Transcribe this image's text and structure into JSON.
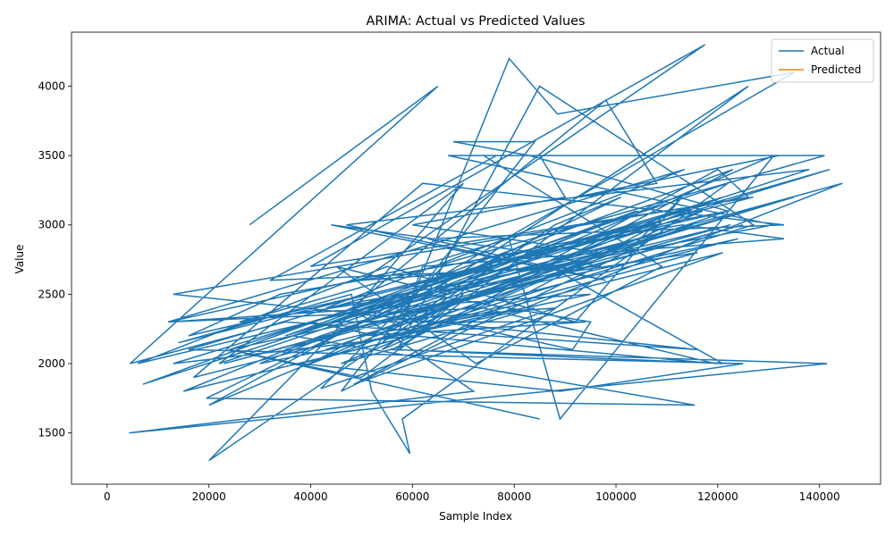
{
  "chart_data": {
    "type": "line",
    "title": "ARIMA: Actual vs Predicted Values",
    "xlabel": "Sample Index",
    "ylabel": "Value",
    "xlim": [
      -7000,
      152000
    ],
    "ylim": [
      1130,
      4390
    ],
    "x_ticks": [
      0,
      20000,
      40000,
      60000,
      80000,
      100000,
      120000,
      140000
    ],
    "x_tick_labels": [
      "0",
      "20000",
      "40000",
      "60000",
      "80000",
      "100000",
      "120000",
      "140000"
    ],
    "y_ticks": [
      1500,
      2000,
      2500,
      3000,
      3500,
      4000
    ],
    "y_tick_labels": [
      "1500",
      "2000",
      "2500",
      "3000",
      "3500",
      "4000"
    ],
    "grid": false,
    "legend_position": "top-right",
    "series": [
      {
        "name": "Actual",
        "color": "#1f77b4",
        "points": [
          [
            28000,
            3000
          ],
          [
            65000,
            4000
          ],
          [
            4500,
            2000
          ],
          [
            35000,
            2300
          ],
          [
            116000,
            2100
          ],
          [
            13000,
            2500
          ],
          [
            126000,
            3200
          ],
          [
            120000,
            3400
          ],
          [
            85000,
            2700
          ],
          [
            47000,
            3000
          ],
          [
            138000,
            3400
          ],
          [
            7000,
            1850
          ],
          [
            123000,
            3400
          ],
          [
            56000,
            2100
          ],
          [
            141500,
            2000
          ],
          [
            4300,
            1500
          ],
          [
            72000,
            1800
          ],
          [
            48000,
            2400
          ],
          [
            98000,
            3900
          ],
          [
            108000,
            3300
          ],
          [
            92000,
            3200
          ],
          [
            132000,
            3500
          ],
          [
            67000,
            3500
          ],
          [
            131000,
            3000
          ],
          [
            43000,
            2400
          ],
          [
            113500,
            3400
          ],
          [
            12000,
            2300
          ],
          [
            74000,
            2400
          ],
          [
            119500,
            2000
          ],
          [
            60000,
            2200
          ],
          [
            13000,
            2000
          ],
          [
            112000,
            3100
          ],
          [
            20000,
            1700
          ],
          [
            50000,
            2300
          ],
          [
            135000,
            4100
          ],
          [
            88500,
            3800
          ],
          [
            79000,
            4200
          ],
          [
            57000,
            2200
          ],
          [
            62000,
            2700
          ],
          [
            133000,
            2900
          ],
          [
            113000,
            3000
          ],
          [
            34000,
            2500
          ],
          [
            16000,
            2200
          ],
          [
            122000,
            3100
          ],
          [
            83000,
            3500
          ],
          [
            68000,
            3600
          ],
          [
            84000,
            3600
          ],
          [
            46000,
            1800
          ],
          [
            102000,
            2800
          ],
          [
            113000,
            3200
          ],
          [
            92000,
            2300
          ],
          [
            55000,
            2700
          ],
          [
            6000,
            2000
          ],
          [
            97000,
            2800
          ],
          [
            60000,
            3000
          ],
          [
            90000,
            3200
          ],
          [
            85000,
            3500
          ],
          [
            76500,
            3500
          ],
          [
            32000,
            2600
          ],
          [
            97000,
            2700
          ],
          [
            84000,
            2800
          ],
          [
            44000,
            3000
          ],
          [
            98000,
            2600
          ],
          [
            63000,
            2900
          ],
          [
            133000,
            3000
          ],
          [
            62000,
            3300
          ],
          [
            17000,
            1900
          ],
          [
            124000,
            2900
          ],
          [
            24000,
            2100
          ],
          [
            122000,
            3300
          ],
          [
            58000,
            1600
          ],
          [
            59500,
            1350
          ],
          [
            52000,
            1800
          ],
          [
            48000,
            2500
          ],
          [
            14000,
            2150
          ],
          [
            127000,
            3200
          ],
          [
            40000,
            2700
          ],
          [
            117500,
            4300
          ],
          [
            50000,
            2600
          ],
          [
            87000,
            2700
          ],
          [
            121000,
            2000
          ],
          [
            57000,
            2100
          ],
          [
            63000,
            2500
          ],
          [
            22000,
            2000
          ],
          [
            70000,
            3300
          ],
          [
            44000,
            2200
          ],
          [
            20000,
            1300
          ],
          [
            88000,
            3000
          ],
          [
            101000,
            3200
          ],
          [
            19500,
            1750
          ],
          [
            115500,
            1700
          ],
          [
            36500,
            2200
          ],
          [
            104000,
            3100
          ],
          [
            30000,
            2000
          ],
          [
            84000,
            2400
          ],
          [
            46000,
            2000
          ],
          [
            104000,
            2900
          ],
          [
            43000,
            2100
          ],
          [
            95000,
            2500
          ],
          [
            12000,
            2300
          ],
          [
            61000,
            2700
          ],
          [
            79000,
            2900
          ],
          [
            89000,
            1600
          ],
          [
            131000,
            3500
          ],
          [
            67000,
            2500
          ],
          [
            45000,
            2700
          ],
          [
            72500,
            2000
          ],
          [
            109000,
            2700
          ],
          [
            74000,
            3500
          ],
          [
            141000,
            3500
          ],
          [
            26000,
            2300
          ],
          [
            116000,
            2800
          ],
          [
            56000,
            2200
          ],
          [
            127000,
            3000
          ],
          [
            85000,
            4000
          ],
          [
            60000,
            2300
          ],
          [
            93000,
            2800
          ],
          [
            121000,
            3200
          ],
          [
            66000,
            2600
          ],
          [
            142000,
            3400
          ],
          [
            35000,
            2200
          ],
          [
            104500,
            3100
          ],
          [
            55000,
            2400
          ],
          [
            144500,
            3300
          ],
          [
            82000,
            2400
          ],
          [
            50000,
            2200
          ],
          [
            94000,
            2300
          ],
          [
            44000,
            2300
          ],
          [
            122500,
            3000
          ],
          [
            23000,
            2000
          ],
          [
            125000,
            3000
          ],
          [
            35000,
            2100
          ],
          [
            135000,
            3200
          ],
          [
            50500,
            2300
          ],
          [
            88000,
            2400
          ],
          [
            42000,
            1820
          ],
          [
            66000,
            2700
          ],
          [
            122000,
            3100
          ],
          [
            50000,
            2200
          ],
          [
            40000,
            2000
          ],
          [
            115000,
            3000
          ],
          [
            40000,
            2300
          ],
          [
            53000,
            2200
          ],
          [
            63000,
            2400
          ],
          [
            78000,
            2800
          ],
          [
            57500,
            2100
          ],
          [
            70000,
            2500
          ],
          [
            54000,
            2100
          ],
          [
            117000,
            3100
          ],
          [
            42000,
            2200
          ],
          [
            15000,
            1800
          ],
          [
            60000,
            2200
          ],
          [
            38000,
            2000
          ],
          [
            89000,
            1800
          ],
          [
            125000,
            2000
          ],
          [
            16000,
            2100
          ],
          [
            53000,
            2500
          ],
          [
            108000,
            3000
          ],
          [
            48500,
            1850
          ],
          [
            121000,
            2800
          ],
          [
            67000,
            2300
          ],
          [
            91500,
            2100
          ],
          [
            95000,
            2300
          ],
          [
            63000,
            2500
          ],
          [
            126000,
            4000
          ],
          [
            50000,
            1900
          ],
          [
            24000,
            2100
          ],
          [
            85000,
            1600
          ]
        ]
      },
      {
        "name": "Predicted",
        "color": "#ff7f0e",
        "points": []
      }
    ]
  }
}
